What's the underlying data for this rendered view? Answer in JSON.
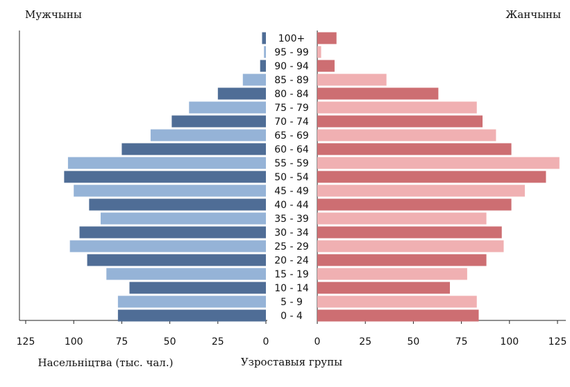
{
  "chart_data": {
    "type": "pyramid",
    "left_title": "Мужчыны",
    "right_title": "Жанчыны",
    "xlabel": "Насельніцтва (тыс. чал.)",
    "category_label": "Узроставыя групы",
    "categories": [
      "0 - 4",
      "5 - 9",
      "10 - 14",
      "15 - 19",
      "20 - 24",
      "25 - 29",
      "30 - 34",
      "35 - 39",
      "40 - 44",
      "45 - 49",
      "50 - 54",
      "55 - 59",
      "60 - 64",
      "65 - 69",
      "70 - 74",
      "75 - 79",
      "80 - 84",
      "85 - 89",
      "90 - 94",
      "95 - 99",
      "100+"
    ],
    "series": [
      {
        "name": "Мужчыны",
        "side": "left",
        "colors": [
          "#4f6d96",
          "#95b3d7"
        ],
        "values": [
          77,
          77,
          71,
          83,
          93,
          102,
          97,
          86,
          92,
          100,
          105,
          103,
          75,
          60,
          49,
          40,
          25,
          12,
          3,
          1,
          2
        ]
      },
      {
        "name": "Жанчыны",
        "side": "right",
        "colors": [
          "#cd6e72",
          "#f0b0b2"
        ],
        "values": [
          84,
          83,
          69,
          78,
          88,
          97,
          96,
          88,
          101,
          108,
          119,
          126,
          101,
          93,
          86,
          83,
          63,
          36,
          9,
          2,
          10
        ]
      }
    ],
    "xlim": [
      0,
      125
    ],
    "xticks": [
      0,
      25,
      50,
      75,
      100,
      125
    ]
  }
}
